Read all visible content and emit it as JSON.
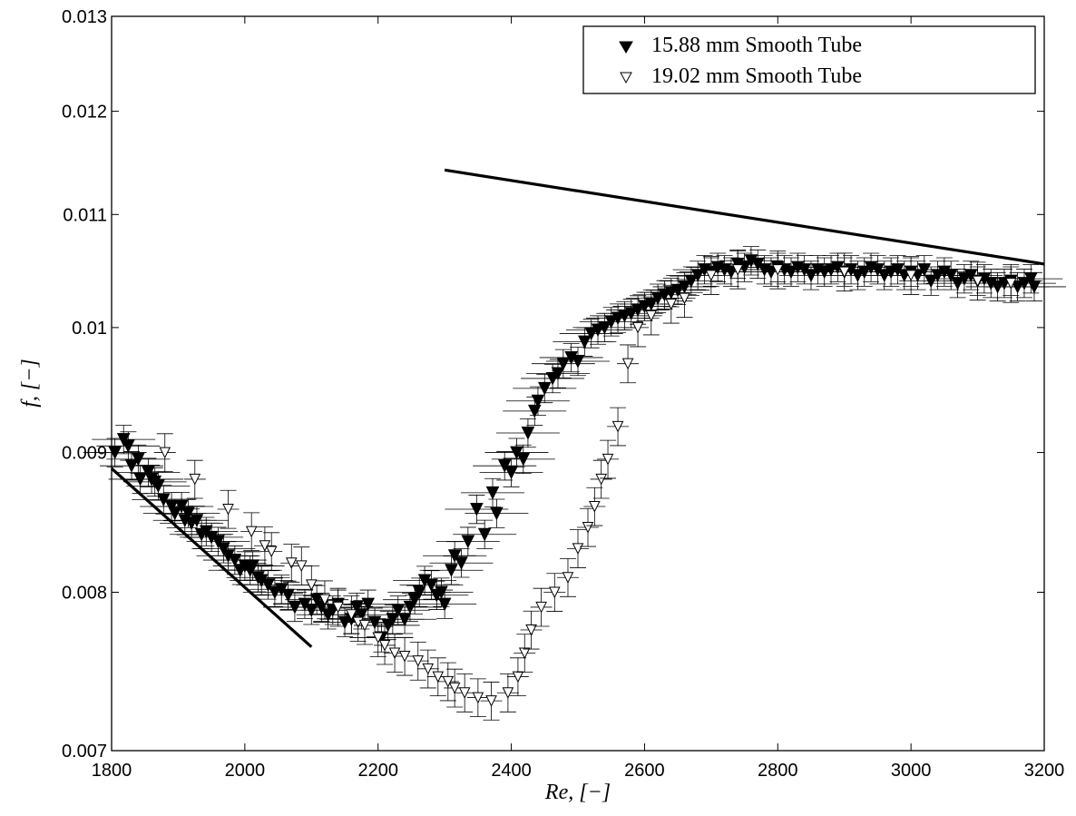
{
  "chart_data": {
    "type": "scatter",
    "title": "",
    "xlabel": "Re, [−]",
    "ylabel": "f, [−]",
    "xlim": [
      1800,
      3200
    ],
    "ylim": [
      0.007,
      0.013
    ],
    "yscale": "log",
    "grid": false,
    "legend_position": "top-right",
    "x_ticks": [
      1800,
      2000,
      2200,
      2400,
      2600,
      2800,
      3000,
      3200
    ],
    "x_tick_labels": [
      "1800",
      "2000",
      "2200",
      "2400",
      "2600",
      "2800",
      "3000",
      "3200"
    ],
    "y_ticks": [
      0.007,
      0.008,
      0.009,
      0.01,
      0.011,
      0.012,
      0.013
    ],
    "y_tick_labels": [
      "0.007",
      "0.008",
      "0.009",
      "0.01",
      "0.011",
      "0.012",
      "0.013"
    ],
    "series": [
      {
        "name": "15.88 mm Smooth Tube",
        "marker": "filled-down-triangle",
        "color": "#000000",
        "points": [
          [
            1805,
            0.009
          ],
          [
            1818,
            0.0091
          ],
          [
            1825,
            0.00905
          ],
          [
            1830,
            0.0089
          ],
          [
            1840,
            0.00895
          ],
          [
            1843,
            0.0088
          ],
          [
            1855,
            0.00885
          ],
          [
            1860,
            0.0088
          ],
          [
            1865,
            0.00878
          ],
          [
            1870,
            0.00875
          ],
          [
            1878,
            0.00865
          ],
          [
            1890,
            0.0086
          ],
          [
            1895,
            0.00855
          ],
          [
            1905,
            0.0086
          ],
          [
            1910,
            0.0085
          ],
          [
            1915,
            0.00855
          ],
          [
            1920,
            0.00848
          ],
          [
            1928,
            0.0085
          ],
          [
            1935,
            0.0084
          ],
          [
            1942,
            0.00842
          ],
          [
            1950,
            0.00838
          ],
          [
            1960,
            0.00835
          ],
          [
            1968,
            0.0083
          ],
          [
            1975,
            0.00825
          ],
          [
            1985,
            0.00822
          ],
          [
            1993,
            0.00815
          ],
          [
            2000,
            0.00818
          ],
          [
            2008,
            0.00815
          ],
          [
            2012,
            0.00818
          ],
          [
            2020,
            0.0081
          ],
          [
            2025,
            0.00808
          ],
          [
            2035,
            0.00805
          ],
          [
            2045,
            0.008
          ],
          [
            2055,
            0.00802
          ],
          [
            2065,
            0.00798
          ],
          [
            2075,
            0.0079
          ],
          [
            2090,
            0.00792
          ],
          [
            2100,
            0.00788
          ],
          [
            2108,
            0.00795
          ],
          [
            2115,
            0.0079
          ],
          [
            2125,
            0.00785
          ],
          [
            2132,
            0.00788
          ],
          [
            2140,
            0.00792
          ],
          [
            2150,
            0.0078
          ],
          [
            2160,
            0.00782
          ],
          [
            2168,
            0.0079
          ],
          [
            2175,
            0.00785
          ],
          [
            2185,
            0.00792
          ],
          [
            2195,
            0.0078
          ],
          [
            2205,
            0.0077
          ],
          [
            2215,
            0.00778
          ],
          [
            2222,
            0.00782
          ],
          [
            2230,
            0.00788
          ],
          [
            2240,
            0.00782
          ],
          [
            2248,
            0.0079
          ],
          [
            2255,
            0.00795
          ],
          [
            2262,
            0.008
          ],
          [
            2270,
            0.00808
          ],
          [
            2280,
            0.00805
          ],
          [
            2288,
            0.00798
          ],
          [
            2295,
            0.008
          ],
          [
            2300,
            0.00792
          ],
          [
            2310,
            0.00815
          ],
          [
            2315,
            0.00825
          ],
          [
            2325,
            0.0082
          ],
          [
            2335,
            0.00835
          ],
          [
            2348,
            0.00858
          ],
          [
            2360,
            0.0084
          ],
          [
            2372,
            0.0087
          ],
          [
            2378,
            0.00855
          ],
          [
            2390,
            0.0089
          ],
          [
            2400,
            0.00885
          ],
          [
            2408,
            0.009
          ],
          [
            2418,
            0.00895
          ],
          [
            2425,
            0.00915
          ],
          [
            2435,
            0.00932
          ],
          [
            2440,
            0.0094
          ],
          [
            2450,
            0.0095
          ],
          [
            2462,
            0.00958
          ],
          [
            2470,
            0.00962
          ],
          [
            2478,
            0.0097
          ],
          [
            2490,
            0.00975
          ],
          [
            2500,
            0.00972
          ],
          [
            2510,
            0.00988
          ],
          [
            2520,
            0.00995
          ],
          [
            2530,
            0.00998
          ],
          [
            2540,
            0.01
          ],
          [
            2550,
            0.01005
          ],
          [
            2560,
            0.01008
          ],
          [
            2570,
            0.0101
          ],
          [
            2580,
            0.01012
          ],
          [
            2590,
            0.01015
          ],
          [
            2600,
            0.01018
          ],
          [
            2610,
            0.0102
          ],
          [
            2620,
            0.01025
          ],
          [
            2630,
            0.01028
          ],
          [
            2640,
            0.0103
          ],
          [
            2650,
            0.01032
          ],
          [
            2660,
            0.01035
          ],
          [
            2670,
            0.0104
          ],
          [
            2680,
            0.01045
          ],
          [
            2690,
            0.0105
          ],
          [
            2700,
            0.01048
          ],
          [
            2710,
            0.01052
          ],
          [
            2720,
            0.0105
          ],
          [
            2730,
            0.01048
          ],
          [
            2740,
            0.01055
          ],
          [
            2750,
            0.01052
          ],
          [
            2760,
            0.01058
          ],
          [
            2770,
            0.01055
          ],
          [
            2780,
            0.0105
          ],
          [
            2790,
            0.01048
          ],
          [
            2800,
            0.01052
          ],
          [
            2810,
            0.0105
          ],
          [
            2820,
            0.01048
          ],
          [
            2830,
            0.01052
          ],
          [
            2840,
            0.0105
          ],
          [
            2850,
            0.01045
          ],
          [
            2860,
            0.0105
          ],
          [
            2870,
            0.01048
          ],
          [
            2880,
            0.0105
          ],
          [
            2890,
            0.01052
          ],
          [
            2900,
            0.01048
          ],
          [
            2910,
            0.0105
          ],
          [
            2920,
            0.01045
          ],
          [
            2930,
            0.01048
          ],
          [
            2940,
            0.01052
          ],
          [
            2950,
            0.0105
          ],
          [
            2960,
            0.01045
          ],
          [
            2970,
            0.01048
          ],
          [
            2980,
            0.0105
          ],
          [
            2990,
            0.01045
          ],
          [
            3000,
            0.01048
          ],
          [
            3010,
            0.01045
          ],
          [
            3020,
            0.0105
          ],
          [
            3030,
            0.0104
          ],
          [
            3040,
            0.01045
          ],
          [
            3050,
            0.01048
          ],
          [
            3060,
            0.01045
          ],
          [
            3070,
            0.01038
          ],
          [
            3080,
            0.01042
          ],
          [
            3090,
            0.01045
          ],
          [
            3100,
            0.0104
          ],
          [
            3110,
            0.01042
          ],
          [
            3120,
            0.01038
          ],
          [
            3130,
            0.01035
          ],
          [
            3140,
            0.01038
          ],
          [
            3150,
            0.0104
          ],
          [
            3160,
            0.01035
          ],
          [
            3170,
            0.01038
          ],
          [
            3180,
            0.01042
          ],
          [
            3185,
            0.01035
          ]
        ]
      },
      {
        "name": "19.02 mm Smooth Tube",
        "marker": "open-down-triangle",
        "color": "#000000",
        "points": [
          [
            1880,
            0.009
          ],
          [
            1925,
            0.0088
          ],
          [
            1975,
            0.00858
          ],
          [
            2010,
            0.00842
          ],
          [
            2030,
            0.00832
          ],
          [
            2040,
            0.00828
          ],
          [
            2070,
            0.0082
          ],
          [
            2085,
            0.00818
          ],
          [
            2100,
            0.00805
          ],
          [
            2120,
            0.00795
          ],
          [
            2140,
            0.0079
          ],
          [
            2160,
            0.00785
          ],
          [
            2170,
            0.0078
          ],
          [
            2180,
            0.00778
          ],
          [
            2200,
            0.0077
          ],
          [
            2210,
            0.00765
          ],
          [
            2225,
            0.0076
          ],
          [
            2240,
            0.00758
          ],
          [
            2260,
            0.00755
          ],
          [
            2275,
            0.0075
          ],
          [
            2290,
            0.00745
          ],
          [
            2305,
            0.00742
          ],
          [
            2315,
            0.00738
          ],
          [
            2330,
            0.00735
          ],
          [
            2350,
            0.00732
          ],
          [
            2370,
            0.0073
          ],
          [
            2395,
            0.00735
          ],
          [
            2410,
            0.00745
          ],
          [
            2420,
            0.0076
          ],
          [
            2430,
            0.00775
          ],
          [
            2445,
            0.0079
          ],
          [
            2465,
            0.008
          ],
          [
            2485,
            0.0081
          ],
          [
            2500,
            0.0083
          ],
          [
            2515,
            0.00845
          ],
          [
            2525,
            0.0086
          ],
          [
            2535,
            0.0088
          ],
          [
            2545,
            0.00895
          ],
          [
            2560,
            0.0092
          ],
          [
            2575,
            0.0097
          ],
          [
            2590,
            0.01
          ],
          [
            2610,
            0.0101
          ],
          [
            2640,
            0.0102
          ],
          [
            2660,
            0.01025
          ],
          [
            2700,
            0.01045
          ],
          [
            2740,
            0.0105
          ],
          [
            2800,
            0.0105
          ],
          [
            2900,
            0.01048
          ],
          [
            3000,
            0.01045
          ],
          [
            3100,
            0.0104
          ],
          [
            3150,
            0.01038
          ]
        ]
      }
    ],
    "lines": [
      {
        "points": [
          [
            1800,
            0.00888
          ],
          [
            2100,
            0.00764
          ]
        ]
      },
      {
        "points": [
          [
            2300,
            0.01142
          ],
          [
            3200,
            0.01055
          ]
        ]
      }
    ]
  }
}
